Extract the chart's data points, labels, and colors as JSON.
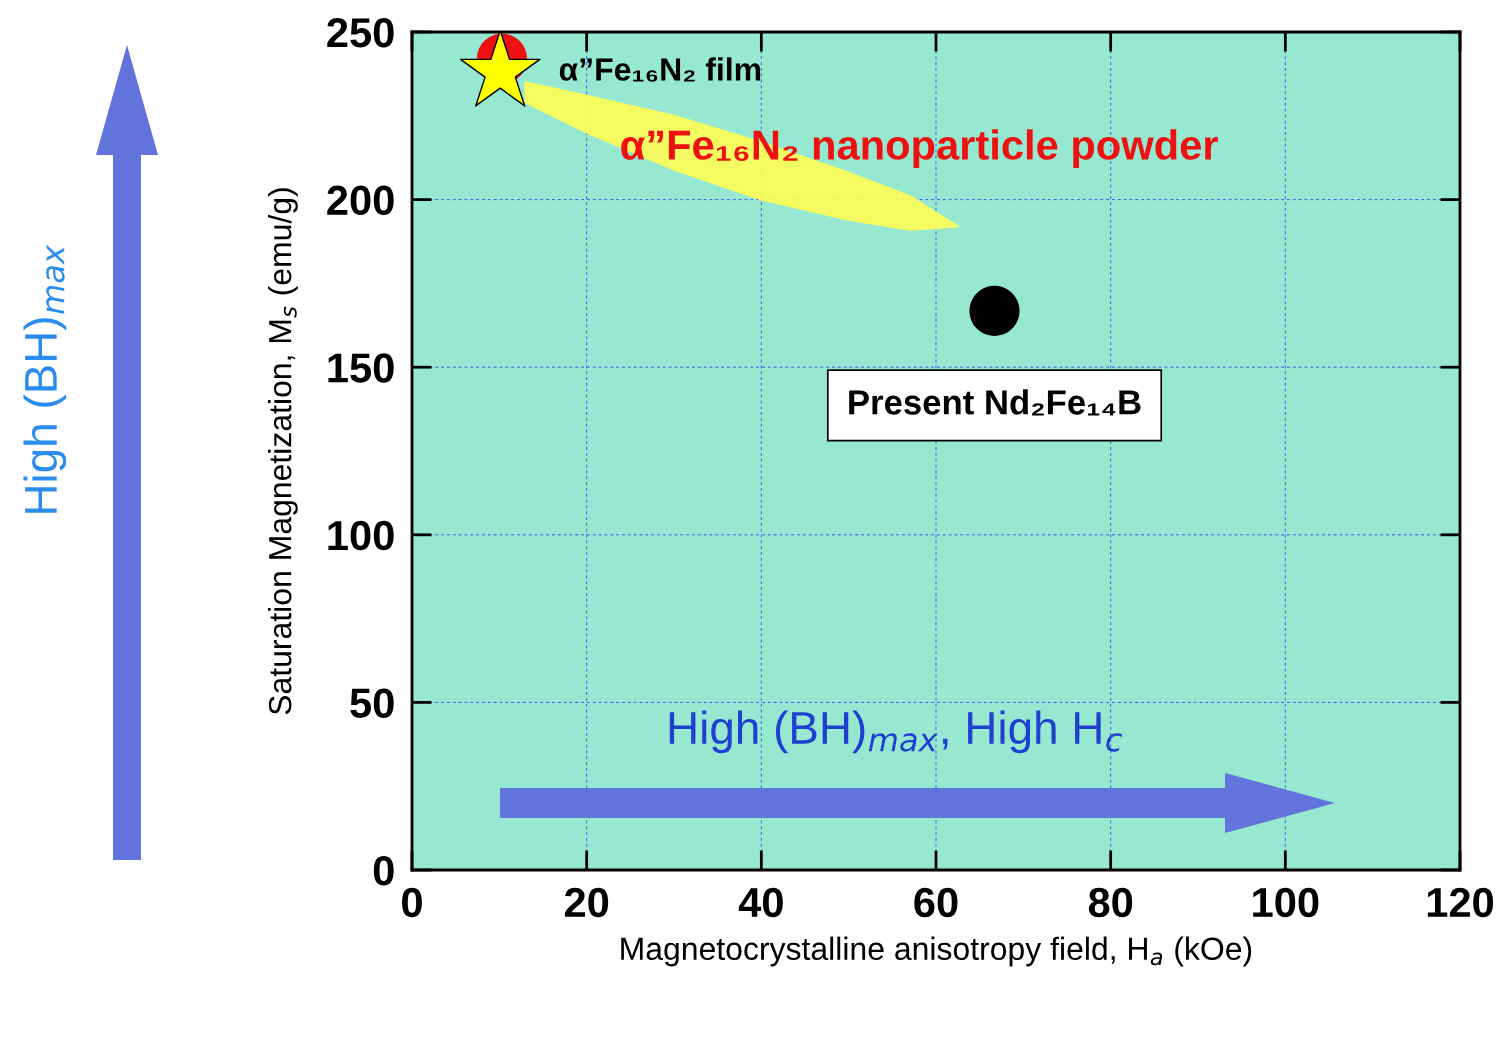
{
  "chart_data": {
    "type": "scatter",
    "xlabel": "Magnetocrystalline anisotropy field, H$_{a}$ (kOe)",
    "ylabel": "Saturation Magnetization, M$_{s}$ (emu/g)",
    "xlim": [
      0,
      120
    ],
    "xticks": [
      0,
      20,
      40,
      60,
      80,
      100,
      120
    ],
    "ylim": [
      0,
      250
    ],
    "yticks": [
      0,
      50,
      100,
      150,
      200,
      250
    ],
    "grid": true,
    "series": [
      {
        "type": "area",
        "color": "#ffff55",
        "x": [
          13,
          20,
          30,
          40,
          50,
          57,
          62.5,
          57,
          50,
          40,
          30,
          20,
          13
        ],
        "values": [
          235,
          231,
          225,
          217,
          208,
          201,
          192,
          191,
          194,
          200,
          209,
          220,
          229
        ]
      },
      {
        "color": "#ee1111",
        "marker": "circle",
        "x": [
          10.3
        ],
        "values": [
          242
        ]
      },
      {
        "color": "#ffff00",
        "marker": "star",
        "x": [
          10.1
        ],
        "values": [
          238
        ]
      },
      {
        "color": "#000000",
        "marker": "circle",
        "x": [
          66.7
        ],
        "values": [
          166.8
        ]
      }
    ],
    "annotations": [
      {
        "text": "α”Fe₁₆N₂ film",
        "x": 10.1,
        "y": 238
      },
      {
        "text": "α”Fe₁₆N₂ nanoparticle powder",
        "x": 35,
        "y": 221
      },
      {
        "text": "Present Nd₂Fe₁₄B",
        "x": 66.7,
        "y": 166.8
      },
      "High (BH)$_{max}$, High H$_{c}$",
      "High (BH)$_{max}$"
    ]
  }
}
